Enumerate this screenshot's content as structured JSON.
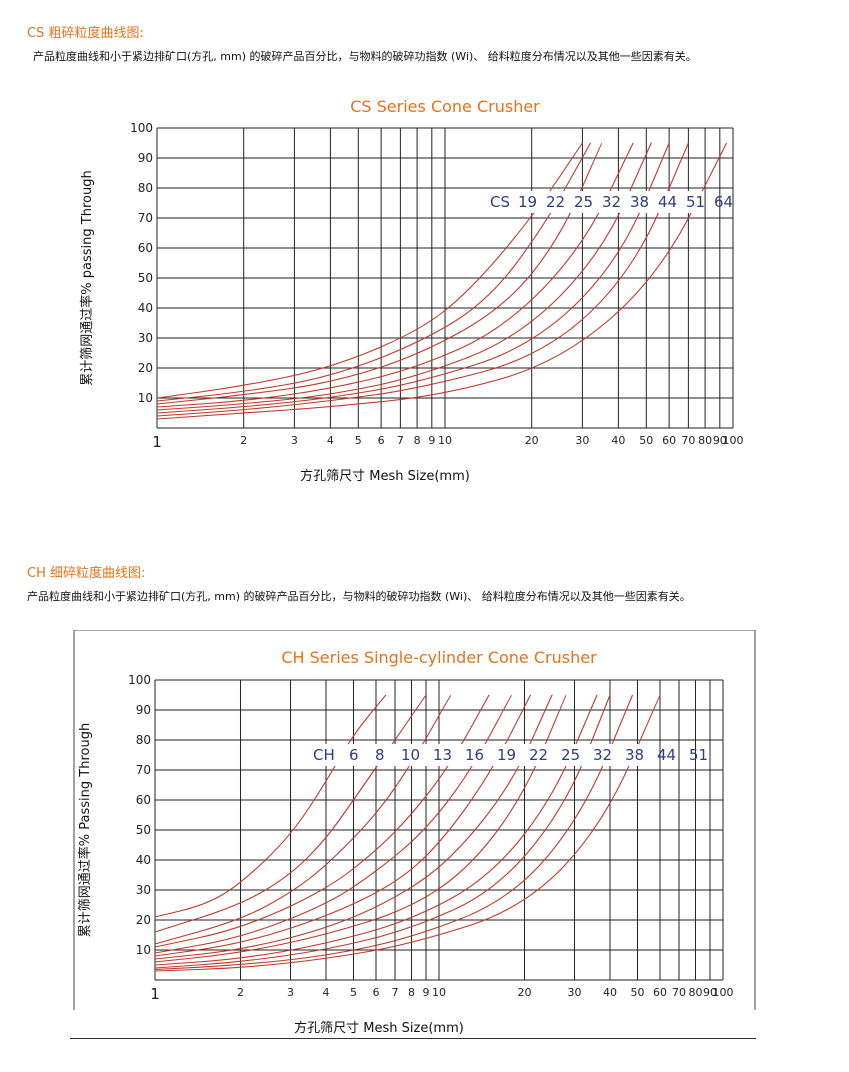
{
  "sections": [
    {
      "title": "CS 粗碎粒度曲线图:",
      "description": "产品粒度曲线和小于紧边排矿口(方孔, mm)  的破碎产品百分比，与物料的破碎功指数 (Wi)、  给料粒度分布情况以及其他一些因素有关。"
    },
    {
      "title": "CH 细碎粒度曲线图:",
      "description": "产品粒度曲线和小于紧边排矿口(方孔, mm)  的破碎产品百分比，与物料的破碎功指数 (Wi)、  给料粒度分布情况以及其他一些因素有关。"
    }
  ],
  "colors": {
    "heading": "#e8711a",
    "curve": "#c0392b",
    "series_label": "#2c3e80",
    "grid": "#222222"
  },
  "chart_data": [
    {
      "type": "line",
      "title": "CS Series Cone Crusher",
      "xlabel": "方孔筛尺寸 Mesh  Size(mm)",
      "ylabel": "累计筛网通过率% passing Through",
      "x_scale": "log",
      "xlim": [
        1,
        100
      ],
      "ylim": [
        0,
        100
      ],
      "x_ticks": [
        1,
        2,
        3,
        4,
        5,
        6,
        7,
        8,
        9,
        10,
        20,
        30,
        40,
        50,
        60,
        70,
        80,
        90,
        100
      ],
      "y_ticks": [
        10,
        20,
        30,
        40,
        50,
        60,
        70,
        80,
        90,
        100
      ],
      "grid": true,
      "series_prefix": "CS",
      "series": [
        {
          "name": "19",
          "x": [
            1,
            2,
            4,
            8,
            12,
            20,
            30
          ],
          "y": [
            10,
            14,
            20,
            32,
            45,
            70,
            95
          ]
        },
        {
          "name": "22",
          "x": [
            1,
            2,
            4,
            8,
            14,
            22,
            32
          ],
          "y": [
            9,
            12,
            17,
            28,
            42,
            67,
            95
          ]
        },
        {
          "name": "25",
          "x": [
            1,
            2,
            4,
            8,
            16,
            25,
            35
          ],
          "y": [
            8,
            11,
            15,
            24,
            40,
            63,
            95
          ]
        },
        {
          "name": "32",
          "x": [
            1,
            2,
            4,
            8,
            16,
            30,
            45
          ],
          "y": [
            7,
            9,
            13,
            20,
            33,
            60,
            95
          ]
        },
        {
          "name": "38",
          "x": [
            1,
            2,
            4,
            8,
            18,
            35,
            52
          ],
          "y": [
            6,
            8,
            11,
            17,
            30,
            58,
            95
          ]
        },
        {
          "name": "44",
          "x": [
            1,
            2,
            4,
            8,
            20,
            40,
            60
          ],
          "y": [
            5,
            7,
            10,
            15,
            27,
            55,
            95
          ]
        },
        {
          "name": "51",
          "x": [
            1,
            2,
            4,
            8,
            22,
            45,
            70
          ],
          "y": [
            4,
            6,
            9,
            13,
            24,
            52,
            95
          ]
        },
        {
          "name": "64",
          "x": [
            1,
            2,
            4,
            10,
            25,
            55,
            95
          ],
          "y": [
            3,
            5,
            7,
            11,
            22,
            50,
            95
          ]
        }
      ]
    },
    {
      "type": "line",
      "title": "CH Series Single-cylinder Cone Crusher",
      "xlabel": "方孔筛尺寸 Mesh  Size(mm)",
      "ylabel": "累计筛网通过率% Passing Through",
      "x_scale": "log",
      "xlim": [
        1,
        100
      ],
      "ylim": [
        0,
        100
      ],
      "x_ticks": [
        1,
        2,
        3,
        4,
        5,
        6,
        7,
        8,
        9,
        10,
        20,
        30,
        40,
        50,
        60,
        70,
        80,
        90,
        100
      ],
      "y_ticks": [
        10,
        20,
        30,
        40,
        50,
        60,
        70,
        80,
        90,
        100
      ],
      "grid": true,
      "series_prefix": "CH",
      "series": [
        {
          "name": "6",
          "x": [
            1,
            1.5,
            2,
            3,
            4,
            5,
            6.5
          ],
          "y": [
            21,
            25,
            32,
            48,
            66,
            82,
            95
          ]
        },
        {
          "name": "8",
          "x": [
            1,
            2,
            3,
            4,
            5,
            7,
            9
          ],
          "y": [
            16,
            25,
            35,
            47,
            60,
            80,
            95
          ]
        },
        {
          "name": "10",
          "x": [
            1,
            2,
            3,
            4,
            6,
            8,
            11
          ],
          "y": [
            12,
            20,
            29,
            38,
            55,
            72,
            95
          ]
        },
        {
          "name": "13",
          "x": [
            1,
            2,
            4,
            6,
            8,
            11,
            15
          ],
          "y": [
            11,
            17,
            30,
            43,
            55,
            72,
            95
          ]
        },
        {
          "name": "16",
          "x": [
            1,
            2,
            4,
            6,
            9,
            13,
            18
          ],
          "y": [
            9,
            14,
            25,
            36,
            50,
            70,
            95
          ]
        },
        {
          "name": "19",
          "x": [
            1,
            2,
            4,
            7,
            10,
            15,
            21
          ],
          "y": [
            8,
            12,
            21,
            32,
            45,
            68,
            95
          ]
        },
        {
          "name": "22",
          "x": [
            1,
            2,
            4,
            7,
            11,
            18,
            25
          ],
          "y": [
            7,
            10,
            17,
            27,
            40,
            65,
            95
          ]
        },
        {
          "name": "25",
          "x": [
            1,
            2,
            4,
            8,
            13,
            20,
            28
          ],
          "y": [
            6,
            9,
            15,
            24,
            38,
            62,
            95
          ]
        },
        {
          "name": "32",
          "x": [
            1,
            2,
            4,
            8,
            15,
            25,
            36
          ],
          "y": [
            5,
            7,
            12,
            20,
            34,
            60,
            95
          ]
        },
        {
          "name": "38",
          "x": [
            1,
            2,
            4,
            8,
            16,
            28,
            40
          ],
          "y": [
            4,
            6,
            10,
            17,
            30,
            58,
            95
          ]
        },
        {
          "name": "44",
          "x": [
            1,
            2,
            4,
            8,
            18,
            32,
            48
          ],
          "y": [
            3.5,
            5,
            8,
            14,
            27,
            55,
            95
          ]
        },
        {
          "name": "51",
          "x": [
            1,
            2,
            4,
            8,
            20,
            38,
            60
          ],
          "y": [
            3,
            4,
            7,
            12,
            24,
            52,
            95
          ]
        }
      ]
    }
  ]
}
